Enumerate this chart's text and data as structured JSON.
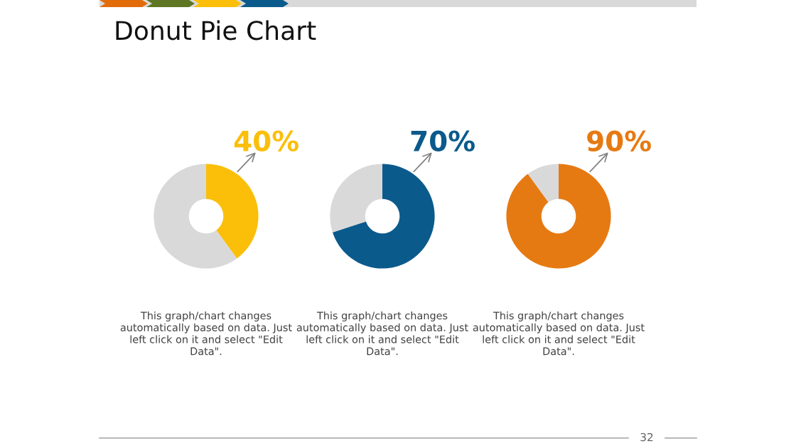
{
  "chart_data": [
    {
      "type": "donut",
      "title": "Donut Pie Chart",
      "categories": [
        null,
        null
      ],
      "values": [
        40,
        60
      ],
      "colors": [
        "#fbbf0a",
        "#d9d9d9"
      ],
      "value_labels": [
        "40%",
        null
      ],
      "annotations": [
        "This graph/chart changes automatically based on data. Just left click on it and select \"Edit Data\"."
      ]
    },
    {
      "type": "donut",
      "categories": [
        null,
        null
      ],
      "values": [
        70,
        30
      ],
      "colors": [
        "#0b5a8c",
        "#d9d9d9"
      ],
      "value_labels": [
        "70%",
        null
      ],
      "annotations": [
        "This graph/chart changes automatically based on data. Just left click on it and select \"Edit Data\"."
      ]
    },
    {
      "type": "donut",
      "categories": [
        null,
        null
      ],
      "values": [
        90,
        10
      ],
      "colors": [
        "#e67a12",
        "#d9d9d9"
      ],
      "value_labels": [
        "90%",
        null
      ],
      "annotations": [
        "This graph/chart changes automatically based on data. Just left click on it and select \"Edit Data\".",
        "32"
      ]
    }
  ]
}
